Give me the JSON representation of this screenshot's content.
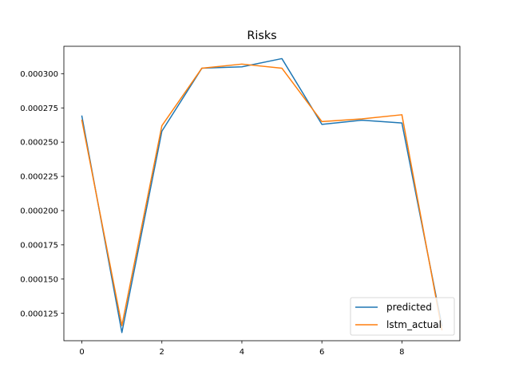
{
  "chart_data": {
    "type": "line",
    "title": "Risks",
    "xlabel": "",
    "ylabel": "",
    "x": [
      0,
      1,
      2,
      3,
      4,
      5,
      6,
      7,
      8,
      9
    ],
    "xlim": [
      -0.45,
      9.45
    ],
    "ylim": [
      0.000105,
      0.00032
    ],
    "xticks": [
      0,
      2,
      4,
      6,
      8
    ],
    "xtick_labels": [
      "0",
      "2",
      "4",
      "6",
      "8"
    ],
    "yticks": [
      0.000125,
      0.00015,
      0.000175,
      0.0002,
      0.000225,
      0.00025,
      0.000275,
      0.0003
    ],
    "ytick_labels": [
      "0.000125",
      "0.000150",
      "0.000175",
      "0.000200",
      "0.000225",
      "0.000250",
      "0.000275",
      "0.000300"
    ],
    "grid": false,
    "legend_position": "lower-right",
    "series": [
      {
        "name": "predicted",
        "color": "#1f77b4",
        "values": [
          0.000269,
          0.000111,
          0.000258,
          0.000304,
          0.000305,
          0.000311,
          0.000263,
          0.000266,
          0.000264,
          0.000116
        ]
      },
      {
        "name": "lstm_actual",
        "color": "#ff7f0e",
        "values": [
          0.000266,
          0.000116,
          0.000262,
          0.000304,
          0.000307,
          0.000304,
          0.000265,
          0.000267,
          0.00027,
          0.000113
        ]
      }
    ]
  }
}
